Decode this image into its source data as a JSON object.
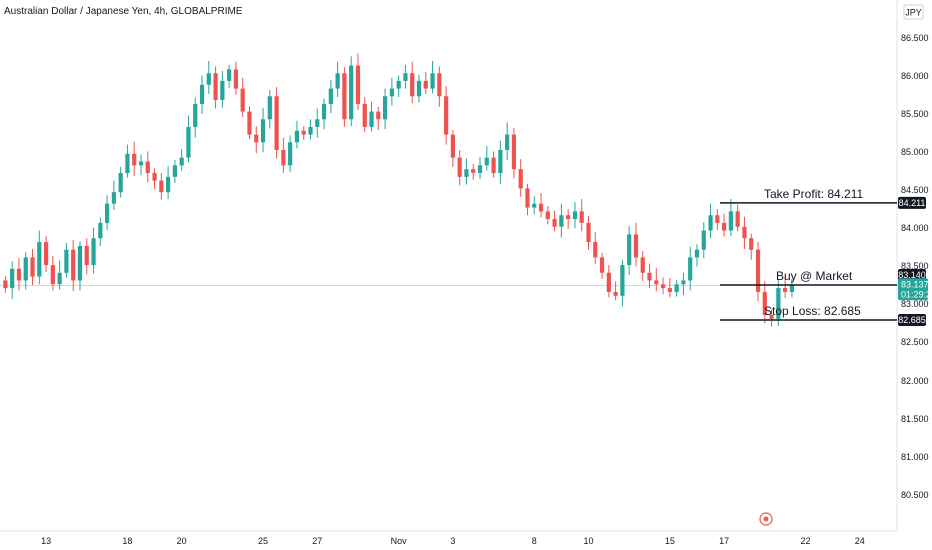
{
  "chart_data": {
    "type": "candlestick",
    "title": "Australian Dollar / Japanese Yen, 4h, GLOBALPRIME",
    "currency_badge": "JPY",
    "ylim": [
      80.0,
      86.75
    ],
    "y_ticks": [
      "86.500",
      "86.000",
      "85.500",
      "85.000",
      "84.500",
      "84.000",
      "83.500",
      "83.000",
      "82.500",
      "82.000",
      "81.500",
      "81.000",
      "80.500"
    ],
    "x_ticks": [
      {
        "label": "13",
        "bar": 6
      },
      {
        "label": "18",
        "bar": 18
      },
      {
        "label": "20",
        "bar": 26
      },
      {
        "label": "25",
        "bar": 38
      },
      {
        "label": "27",
        "bar": 46
      },
      {
        "label": "Nov",
        "bar": 58
      },
      {
        "label": "3",
        "bar": 66
      },
      {
        "label": "8",
        "bar": 78
      },
      {
        "label": "10",
        "bar": 86
      },
      {
        "label": "15",
        "bar": 98
      },
      {
        "label": "17",
        "bar": 106
      },
      {
        "label": "22",
        "bar": 118
      },
      {
        "label": "24",
        "bar": 126
      }
    ],
    "total_slots": 132,
    "closes": [
      83.1,
      83.35,
      83.2,
      83.5,
      83.25,
      83.7,
      83.4,
      83.15,
      83.3,
      83.6,
      83.2,
      83.65,
      83.4,
      83.75,
      83.95,
      84.2,
      84.35,
      84.6,
      84.85,
      84.7,
      84.75,
      84.6,
      84.5,
      84.35,
      84.55,
      84.7,
      84.8,
      85.2,
      85.5,
      85.75,
      85.9,
      85.55,
      85.8,
      85.95,
      85.7,
      85.4,
      85.1,
      85.0,
      85.3,
      85.6,
      84.9,
      84.7,
      85.0,
      85.15,
      85.1,
      85.2,
      85.3,
      85.5,
      85.7,
      85.9,
      85.3,
      86.0,
      85.5,
      85.2,
      85.4,
      85.3,
      85.6,
      85.7,
      85.8,
      85.9,
      85.6,
      85.8,
      85.7,
      85.9,
      85.6,
      85.1,
      84.8,
      84.55,
      84.65,
      84.6,
      84.7,
      84.8,
      84.6,
      84.9,
      85.1,
      84.65,
      84.4,
      84.15,
      84.2,
      84.1,
      84.0,
      83.9,
      84.05,
      84.0,
      84.1,
      83.95,
      83.7,
      83.5,
      83.3,
      83.05,
      83.0,
      83.4,
      83.8,
      83.5,
      83.3,
      83.2,
      83.15,
      83.1,
      83.05,
      83.15,
      83.2,
      83.5,
      83.6,
      83.85,
      84.05,
      83.95,
      83.85,
      84.1,
      83.9,
      83.75,
      83.6,
      83.05,
      82.75,
      82.7,
      83.1,
      83.05,
      83.137
    ],
    "last_price": "83.137",
    "countdown": "01:29:22",
    "colors": {
      "up": "#26a69a",
      "down": "#ef5350",
      "price_line": "#26a69a"
    },
    "annotations": {
      "take_profit": {
        "label": "Take Profit:  84.211",
        "value": 84.211,
        "tag": "84.211"
      },
      "entry": {
        "label": "Buy @ Market",
        "value": 83.14,
        "tag": "83.140"
      },
      "stop_loss": {
        "label": "Stop Loss:  82.685",
        "value": 82.685,
        "tag": "82.685"
      }
    }
  }
}
